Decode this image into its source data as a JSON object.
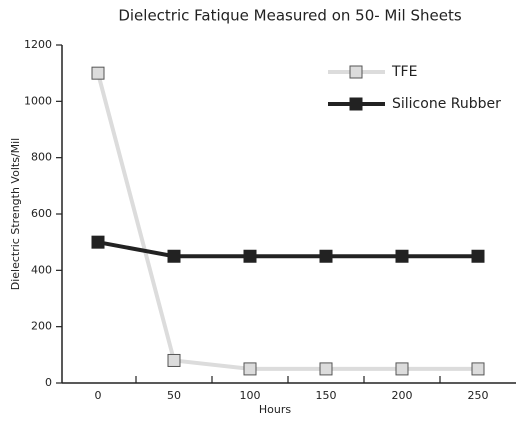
{
  "chart_data": {
    "type": "line",
    "title": "Dielectric Fatique Measured on 50- Mil Sheets",
    "x_label": "Hours",
    "y_label": "Dielectric Strength Volts/Mil",
    "categories": [
      "0",
      "50",
      "100",
      "150",
      "200",
      "250"
    ],
    "series": [
      {
        "name": "TFE",
        "color": "#dcdcdc",
        "marker_edge": "#555555",
        "values": [
          1100,
          80,
          50,
          50,
          50,
          50
        ]
      },
      {
        "name": "Silicone Rubber",
        "color": "#222222",
        "marker_edge": "#222222",
        "values": [
          500,
          450,
          450,
          450,
          450,
          450
        ]
      }
    ],
    "ylim": [
      0,
      1200
    ],
    "yticks": [
      0,
      200,
      400,
      600,
      800,
      1000,
      1200
    ],
    "legend": "upper right"
  }
}
